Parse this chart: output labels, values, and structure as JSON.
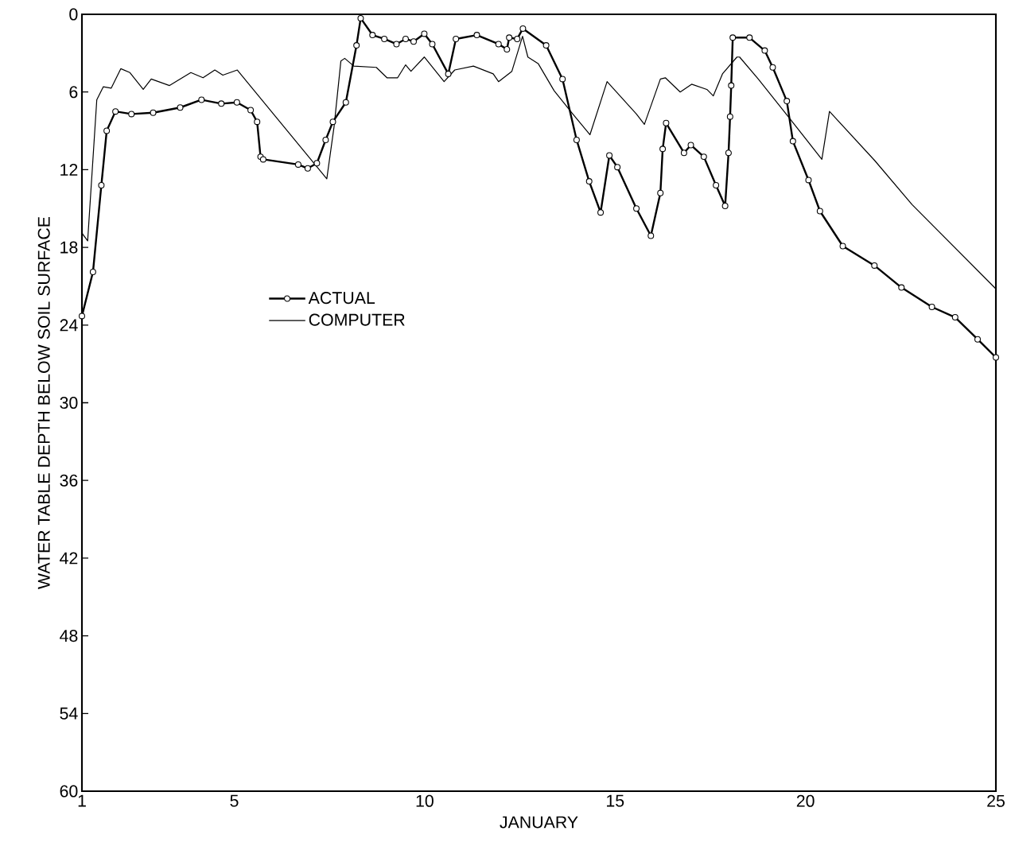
{
  "chart_data": {
    "type": "line",
    "xlabel": "JANUARY",
    "ylabel": "WATER TABLE DEPTH  BELOW  SOIL SURFACE",
    "xlim": [
      1,
      25
    ],
    "xticks": [
      1,
      5,
      10,
      15,
      20,
      25
    ],
    "ylim": [
      60,
      0
    ],
    "yticks": [
      0,
      6,
      12,
      18,
      24,
      30,
      36,
      42,
      48,
      54,
      60
    ],
    "legend": "left",
    "grid": false,
    "line_style": "solid",
    "series": [
      {
        "name": "ACTUAL",
        "color": "#000000",
        "marker": "circle",
        "x": [
          1.0,
          1.29,
          1.51,
          1.65,
          1.88,
          2.3,
          2.87,
          3.58,
          4.14,
          4.66,
          5.07,
          5.43,
          5.6,
          5.69,
          5.76,
          6.68,
          6.93,
          7.17,
          7.4,
          7.59,
          7.93,
          8.21,
          8.32,
          8.63,
          8.94,
          9.26,
          9.5,
          9.71,
          9.99,
          10.2,
          10.62,
          10.82,
          11.37,
          11.94,
          12.16,
          12.22,
          12.43,
          12.58,
          13.19,
          13.62,
          13.99,
          14.32,
          14.62,
          14.85,
          15.06,
          15.56,
          15.94,
          16.19,
          16.25,
          16.34,
          16.81,
          16.99,
          17.33,
          17.65,
          17.89,
          17.98,
          18.02,
          18.05,
          18.09,
          18.53,
          18.93,
          19.14,
          19.51,
          19.67,
          20.08,
          20.38,
          20.98,
          21.81,
          22.52,
          23.32,
          23.93,
          24.52,
          25.0
        ],
        "values": [
          23.3,
          19.9,
          13.2,
          9.0,
          7.5,
          7.7,
          7.6,
          7.2,
          6.6,
          6.9,
          6.8,
          7.4,
          8.3,
          11.0,
          11.2,
          11.6,
          11.9,
          11.5,
          9.7,
          8.3,
          6.8,
          2.4,
          0.3,
          1.6,
          1.9,
          2.3,
          1.9,
          2.1,
          1.5,
          2.3,
          4.6,
          1.9,
          1.6,
          2.3,
          2.7,
          1.8,
          1.9,
          1.1,
          2.4,
          5.0,
          9.7,
          12.9,
          15.3,
          10.9,
          11.8,
          15.0,
          17.1,
          13.8,
          10.4,
          8.4,
          10.7,
          10.1,
          11.0,
          13.2,
          14.8,
          10.7,
          7.9,
          5.5,
          1.8,
          1.8,
          2.8,
          4.1,
          6.7,
          9.8,
          12.8,
          15.2,
          17.9,
          19.4,
          21.1,
          22.6,
          23.4,
          25.1,
          26.5
        ]
      },
      {
        "name": "COMPUTER",
        "color": "#000000",
        "marker": "none",
        "x": [
          1.0,
          1.15,
          1.39,
          1.56,
          1.77,
          2.02,
          2.26,
          2.61,
          2.82,
          3.3,
          3.86,
          4.18,
          4.49,
          4.7,
          5.08,
          7.43,
          7.62,
          7.8,
          7.9,
          8.14,
          8.73,
          9.01,
          9.29,
          9.5,
          9.64,
          9.99,
          10.51,
          10.79,
          11.28,
          11.8,
          11.94,
          12.29,
          12.57,
          12.71,
          12.98,
          13.4,
          13.89,
          14.34,
          14.79,
          15.56,
          15.77,
          16.19,
          16.32,
          16.71,
          17.01,
          17.41,
          17.58,
          17.82,
          18.2,
          18.27,
          18.76,
          19.6,
          20.43,
          20.63,
          21.82,
          22.8,
          25.0
        ],
        "values": [
          16.9,
          17.5,
          6.6,
          5.6,
          5.7,
          4.2,
          4.5,
          5.8,
          5.0,
          5.5,
          4.5,
          4.9,
          4.3,
          4.7,
          4.3,
          12.7,
          8.7,
          3.6,
          3.4,
          4.0,
          4.1,
          4.9,
          4.9,
          3.9,
          4.4,
          3.3,
          5.2,
          4.3,
          4.0,
          4.6,
          5.2,
          4.4,
          1.7,
          3.3,
          3.8,
          5.9,
          7.7,
          9.3,
          5.2,
          7.7,
          8.5,
          5.0,
          4.9,
          6.0,
          5.4,
          5.8,
          6.3,
          4.6,
          3.3,
          3.3,
          5.0,
          8.1,
          11.2,
          7.5,
          11.3,
          14.7,
          21.2
        ]
      }
    ]
  }
}
